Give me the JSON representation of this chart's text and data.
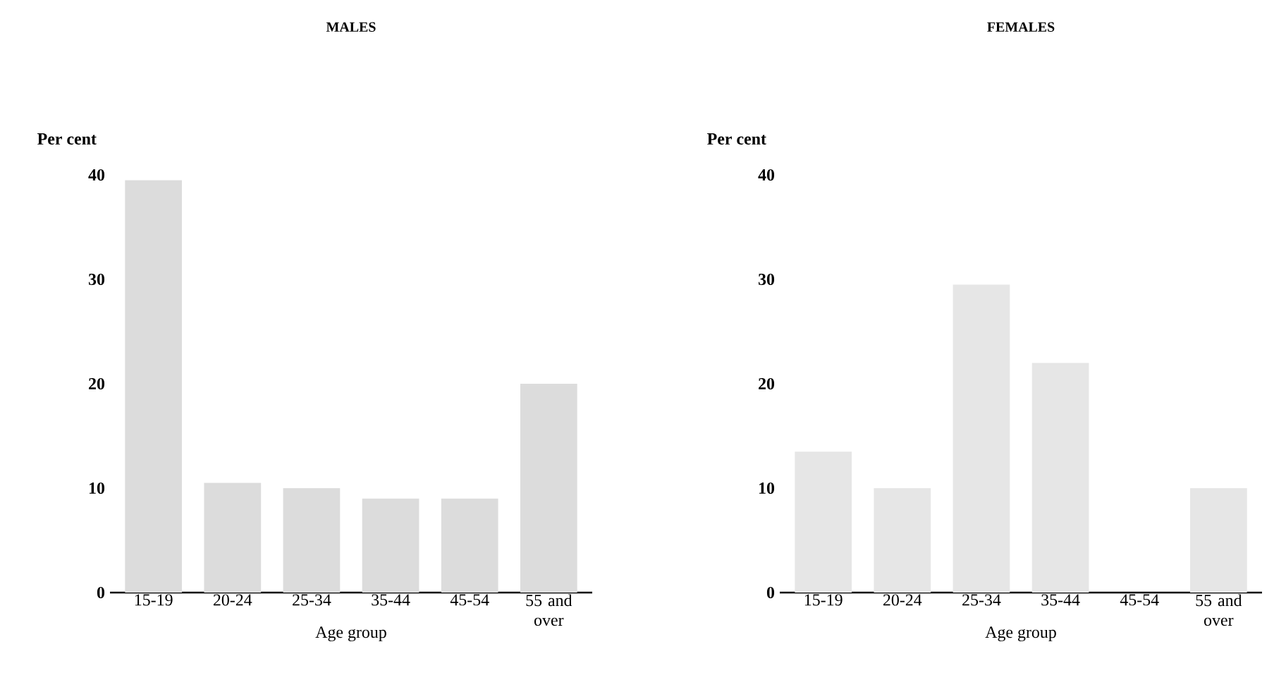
{
  "chart_data": [
    {
      "type": "bar",
      "title": "MALES",
      "xlabel": "Age group",
      "ylabel": "Per cent",
      "categories": [
        "15-19",
        "20-24",
        "25-34",
        "35-44",
        "45-54",
        "55 and over"
      ],
      "values": [
        39.5,
        10.5,
        10,
        9,
        9,
        20
      ],
      "color": "#dcdcdc",
      "ylim": [
        0,
        40
      ],
      "yticks": [
        0,
        10,
        20,
        30,
        40
      ],
      "grid": false,
      "legend": false
    },
    {
      "type": "bar",
      "title": "FEMALES",
      "xlabel": "Age group",
      "ylabel": "Per cent",
      "categories": [
        "15-19",
        "20-24",
        "25-34",
        "35-44",
        "45-54",
        "55 and over"
      ],
      "values": [
        13.5,
        10,
        29.5,
        22,
        null,
        10
      ],
      "color": "#e6e6e6",
      "ylim": [
        0,
        40
      ],
      "yticks": [
        0,
        10,
        20,
        30,
        40
      ],
      "grid": false,
      "legend": false
    }
  ]
}
